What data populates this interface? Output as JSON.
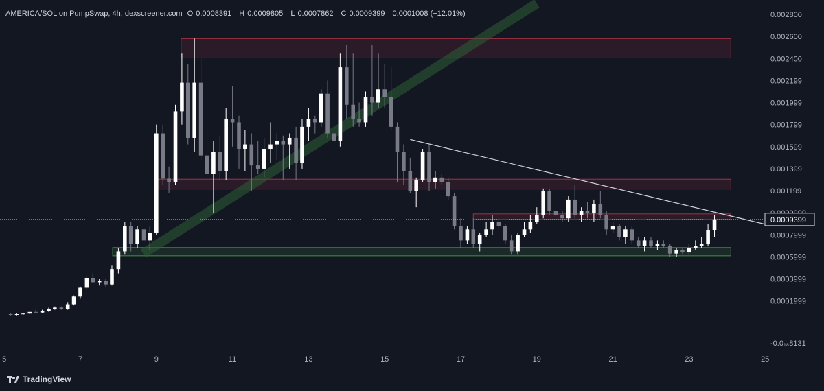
{
  "header": {
    "symbol": "AMERICA/SOL on PumpSwap, 4h, dexscreener.com",
    "open_label": "O",
    "open": "0.0008391",
    "high_label": "H",
    "high": "0.0009805",
    "low_label": "L",
    "low": "0.0007862",
    "close_label": "C",
    "close": "0.0009399",
    "change": "0.0001008 (+12.01%)"
  },
  "watermark": {
    "brand": "TradingView"
  },
  "price_tag": "0.0009399",
  "colors": {
    "background": "#131722",
    "up": "#ffffff",
    "down": "#787b86",
    "zone_red": "#c0394b",
    "zone_green": "#4caf50",
    "trend_green": "#2e5e36",
    "trendline": "#d1d4dc"
  },
  "chart_data": {
    "type": "candlestick",
    "interval": "4h",
    "ylim": [
      -0.00018131,
      0.0028
    ],
    "y_tick_labels": [
      "0.002800",
      "0.002600",
      "0.002400",
      "0.002199",
      "0.001999",
      "0.001799",
      "0.001599",
      "0.001399",
      "0.001199",
      "0.0009999",
      "0.0007999",
      "0.0005999",
      "0.0003999",
      "0.0001999",
      "-0.0₁₈8131"
    ],
    "y_tick_values": [
      0.0028,
      0.0026,
      0.0024,
      0.0022,
      0.002,
      0.0018,
      0.0016,
      0.0014,
      0.0012,
      0.001,
      0.0008,
      0.0006,
      0.0004,
      0.0002,
      -0.00018131
    ],
    "x_tick_labels": [
      "5",
      "7",
      "9",
      "11",
      "13",
      "15",
      "17",
      "19",
      "21",
      "23",
      "25"
    ],
    "x_tick_days": [
      5,
      7,
      9,
      11,
      13,
      15,
      17,
      19,
      21,
      23,
      25
    ],
    "candles": [
      {
        "d": 5.17,
        "o": 8e-05,
        "h": 8.5e-05,
        "l": 7e-05,
        "c": 7.5e-05
      },
      {
        "d": 5.33,
        "o": 7.5e-05,
        "h": 8.5e-05,
        "l": 7e-05,
        "c": 8e-05
      },
      {
        "d": 5.5,
        "o": 8e-05,
        "h": 9e-05,
        "l": 7.5e-05,
        "c": 8.5e-05
      },
      {
        "d": 5.67,
        "o": 8.5e-05,
        "h": 0.0001,
        "l": 8e-05,
        "c": 0.0001
      },
      {
        "d": 5.83,
        "o": 0.0001,
        "h": 0.00012,
        "l": 9e-05,
        "c": 9.5e-05
      },
      {
        "d": 6.0,
        "o": 9.5e-05,
        "h": 0.00012,
        "l": 9e-05,
        "c": 0.00011
      },
      {
        "d": 6.17,
        "o": 0.00011,
        "h": 0.00014,
        "l": 0.0001,
        "c": 0.00013
      },
      {
        "d": 6.33,
        "o": 0.00013,
        "h": 0.00015,
        "l": 0.00012,
        "c": 0.00014
      },
      {
        "d": 6.5,
        "o": 0.00014,
        "h": 0.00015,
        "l": 0.00012,
        "c": 0.00013
      },
      {
        "d": 6.67,
        "o": 0.00013,
        "h": 0.00019,
        "l": 0.00012,
        "c": 0.00017
      },
      {
        "d": 6.83,
        "o": 0.00017,
        "h": 0.00025,
        "l": 0.00016,
        "c": 0.00024
      },
      {
        "d": 7.0,
        "o": 0.00024,
        "h": 0.00033,
        "l": 0.00022,
        "c": 0.00032
      },
      {
        "d": 7.17,
        "o": 0.00032,
        "h": 0.00043,
        "l": 0.0003,
        "c": 0.00041
      },
      {
        "d": 7.33,
        "o": 0.00041,
        "h": 0.00045,
        "l": 0.00036,
        "c": 0.00037
      },
      {
        "d": 7.5,
        "o": 0.00037,
        "h": 0.0004,
        "l": 0.00034,
        "c": 0.00038
      },
      {
        "d": 7.67,
        "o": 0.00038,
        "h": 0.0004,
        "l": 0.00033,
        "c": 0.00035
      },
      {
        "d": 7.83,
        "o": 0.00035,
        "h": 0.00052,
        "l": 0.00034,
        "c": 0.00049
      },
      {
        "d": 8.0,
        "o": 0.00049,
        "h": 0.00068,
        "l": 0.00045,
        "c": 0.00065
      },
      {
        "d": 8.17,
        "o": 0.00065,
        "h": 0.00092,
        "l": 0.00062,
        "c": 0.00088
      },
      {
        "d": 8.33,
        "o": 0.00088,
        "h": 0.00092,
        "l": 0.00065,
        "c": 0.00072
      },
      {
        "d": 8.5,
        "o": 0.00072,
        "h": 0.00088,
        "l": 0.00068,
        "c": 0.00085
      },
      {
        "d": 8.67,
        "o": 0.00085,
        "h": 0.00095,
        "l": 0.0007,
        "c": 0.00075
      },
      {
        "d": 8.83,
        "o": 0.00075,
        "h": 0.00088,
        "l": 0.00066,
        "c": 0.00082
      },
      {
        "d": 9.0,
        "o": 0.00082,
        "h": 0.0018,
        "l": 0.0008,
        "c": 0.00172
      },
      {
        "d": 9.17,
        "o": 0.00172,
        "h": 0.0018,
        "l": 0.00125,
        "c": 0.00131
      },
      {
        "d": 9.33,
        "o": 0.00131,
        "h": 0.00142,
        "l": 0.00118,
        "c": 0.00128
      },
      {
        "d": 9.5,
        "o": 0.00128,
        "h": 0.00198,
        "l": 0.00125,
        "c": 0.00192
      },
      {
        "d": 9.67,
        "o": 0.00192,
        "h": 0.00245,
        "l": 0.0018,
        "c": 0.00218
      },
      {
        "d": 9.83,
        "o": 0.00218,
        "h": 0.00235,
        "l": 0.00162,
        "c": 0.00168
      },
      {
        "d": 10.0,
        "o": 0.00168,
        "h": 0.00258,
        "l": 0.00155,
        "c": 0.00218
      },
      {
        "d": 10.17,
        "o": 0.00218,
        "h": 0.0024,
        "l": 0.00148,
        "c": 0.00152
      },
      {
        "d": 10.33,
        "o": 0.00152,
        "h": 0.00175,
        "l": 0.00128,
        "c": 0.00135
      },
      {
        "d": 10.5,
        "o": 0.00135,
        "h": 0.00165,
        "l": 0.001,
        "c": 0.00155
      },
      {
        "d": 10.67,
        "o": 0.00155,
        "h": 0.0017,
        "l": 0.0013,
        "c": 0.00138
      },
      {
        "d": 10.83,
        "o": 0.00138,
        "h": 0.00195,
        "l": 0.0013,
        "c": 0.00185
      },
      {
        "d": 11.0,
        "o": 0.00185,
        "h": 0.00215,
        "l": 0.0016,
        "c": 0.00182
      },
      {
        "d": 11.17,
        "o": 0.00182,
        "h": 0.00188,
        "l": 0.0014,
        "c": 0.00158
      },
      {
        "d": 11.33,
        "o": 0.00158,
        "h": 0.00175,
        "l": 0.00138,
        "c": 0.00162
      },
      {
        "d": 11.5,
        "o": 0.00162,
        "h": 0.00172,
        "l": 0.0012,
        "c": 0.00143
      },
      {
        "d": 11.67,
        "o": 0.00143,
        "h": 0.00165,
        "l": 0.00135,
        "c": 0.0014
      },
      {
        "d": 11.83,
        "o": 0.0014,
        "h": 0.00168,
        "l": 0.00132,
        "c": 0.00158
      },
      {
        "d": 12.0,
        "o": 0.00158,
        "h": 0.00182,
        "l": 0.00145,
        "c": 0.00162
      },
      {
        "d": 12.17,
        "o": 0.00162,
        "h": 0.00172,
        "l": 0.00148,
        "c": 0.00165
      },
      {
        "d": 12.33,
        "o": 0.00165,
        "h": 0.0017,
        "l": 0.0013,
        "c": 0.00162
      },
      {
        "d": 12.5,
        "o": 0.00162,
        "h": 0.00172,
        "l": 0.0014,
        "c": 0.00168
      },
      {
        "d": 12.67,
        "o": 0.00168,
        "h": 0.00178,
        "l": 0.0013,
        "c": 0.00145
      },
      {
        "d": 12.83,
        "o": 0.00145,
        "h": 0.00185,
        "l": 0.0014,
        "c": 0.00178
      },
      {
        "d": 13.0,
        "o": 0.00178,
        "h": 0.00195,
        "l": 0.00165,
        "c": 0.00185
      },
      {
        "d": 13.17,
        "o": 0.00185,
        "h": 0.00188,
        "l": 0.00172,
        "c": 0.00182
      },
      {
        "d": 13.33,
        "o": 0.00182,
        "h": 0.00212,
        "l": 0.00178,
        "c": 0.00208
      },
      {
        "d": 13.5,
        "o": 0.00208,
        "h": 0.0022,
        "l": 0.00168,
        "c": 0.00172
      },
      {
        "d": 13.67,
        "o": 0.00172,
        "h": 0.0018,
        "l": 0.00148,
        "c": 0.00165
      },
      {
        "d": 13.83,
        "o": 0.00165,
        "h": 0.00245,
        "l": 0.0016,
        "c": 0.00232
      },
      {
        "d": 14.0,
        "o": 0.00232,
        "h": 0.00252,
        "l": 0.00185,
        "c": 0.00198
      },
      {
        "d": 14.17,
        "o": 0.00198,
        "h": 0.00245,
        "l": 0.00178,
        "c": 0.00185
      },
      {
        "d": 14.33,
        "o": 0.00185,
        "h": 0.002,
        "l": 0.00178,
        "c": 0.00182
      },
      {
        "d": 14.5,
        "o": 0.00182,
        "h": 0.0021,
        "l": 0.00178,
        "c": 0.00205
      },
      {
        "d": 14.67,
        "o": 0.00205,
        "h": 0.00252,
        "l": 0.00188,
        "c": 0.002
      },
      {
        "d": 14.83,
        "o": 0.002,
        "h": 0.00245,
        "l": 0.00195,
        "c": 0.00212
      },
      {
        "d": 15.0,
        "o": 0.00212,
        "h": 0.00235,
        "l": 0.00195,
        "c": 0.00205
      },
      {
        "d": 15.17,
        "o": 0.00205,
        "h": 0.00232,
        "l": 0.00175,
        "c": 0.00178
      },
      {
        "d": 15.33,
        "o": 0.00178,
        "h": 0.00182,
        "l": 0.00128,
        "c": 0.00155
      },
      {
        "d": 15.5,
        "o": 0.00155,
        "h": 0.00162,
        "l": 0.00125,
        "c": 0.00138
      },
      {
        "d": 15.67,
        "o": 0.00138,
        "h": 0.0015,
        "l": 0.00118,
        "c": 0.0012
      },
      {
        "d": 15.83,
        "o": 0.0012,
        "h": 0.00132,
        "l": 0.00105,
        "c": 0.0013
      },
      {
        "d": 16.0,
        "o": 0.0013,
        "h": 0.00158,
        "l": 0.00128,
        "c": 0.00155
      },
      {
        "d": 16.17,
        "o": 0.00155,
        "h": 0.00162,
        "l": 0.0012,
        "c": 0.00128
      },
      {
        "d": 16.33,
        "o": 0.00128,
        "h": 0.00138,
        "l": 0.00122,
        "c": 0.00132
      },
      {
        "d": 16.5,
        "o": 0.00132,
        "h": 0.00135,
        "l": 0.00125,
        "c": 0.00128
      },
      {
        "d": 16.67,
        "o": 0.00128,
        "h": 0.00132,
        "l": 0.00112,
        "c": 0.00115
      },
      {
        "d": 16.83,
        "o": 0.00115,
        "h": 0.00118,
        "l": 0.00085,
        "c": 0.00088
      },
      {
        "d": 17.0,
        "o": 0.00088,
        "h": 0.00095,
        "l": 0.00068,
        "c": 0.00075
      },
      {
        "d": 17.17,
        "o": 0.00075,
        "h": 0.00088,
        "l": 0.00072,
        "c": 0.00085
      },
      {
        "d": 17.33,
        "o": 0.00085,
        "h": 0.00095,
        "l": 0.00068,
        "c": 0.00072
      },
      {
        "d": 17.5,
        "o": 0.00072,
        "h": 0.00082,
        "l": 0.00065,
        "c": 0.0008
      },
      {
        "d": 17.67,
        "o": 0.0008,
        "h": 0.00092,
        "l": 0.00078,
        "c": 0.00085
      },
      {
        "d": 17.83,
        "o": 0.00085,
        "h": 0.00098,
        "l": 0.0008,
        "c": 0.00092
      },
      {
        "d": 18.0,
        "o": 0.00092,
        "h": 0.00095,
        "l": 0.00085,
        "c": 0.00088
      },
      {
        "d": 18.17,
        "o": 0.00088,
        "h": 0.0009,
        "l": 0.00072,
        "c": 0.00075
      },
      {
        "d": 18.33,
        "o": 0.00075,
        "h": 0.0008,
        "l": 0.00062,
        "c": 0.00065
      },
      {
        "d": 18.5,
        "o": 0.00065,
        "h": 0.00082,
        "l": 0.00062,
        "c": 0.0008
      },
      {
        "d": 18.67,
        "o": 0.0008,
        "h": 0.00092,
        "l": 0.00078,
        "c": 0.00085
      },
      {
        "d": 18.83,
        "o": 0.00085,
        "h": 0.00098,
        "l": 0.00082,
        "c": 0.00092
      },
      {
        "d": 19.0,
        "o": 0.00092,
        "h": 0.00105,
        "l": 0.0009,
        "c": 0.00098
      },
      {
        "d": 19.17,
        "o": 0.00098,
        "h": 0.00122,
        "l": 0.00095,
        "c": 0.0012
      },
      {
        "d": 19.33,
        "o": 0.0012,
        "h": 0.00122,
        "l": 0.00098,
        "c": 0.00102
      },
      {
        "d": 19.5,
        "o": 0.00102,
        "h": 0.00108,
        "l": 0.00095,
        "c": 0.00098
      },
      {
        "d": 19.67,
        "o": 0.00098,
        "h": 0.00102,
        "l": 0.00092,
        "c": 0.00095
      },
      {
        "d": 19.83,
        "o": 0.00095,
        "h": 0.00115,
        "l": 0.00092,
        "c": 0.00112
      },
      {
        "d": 20.0,
        "o": 0.00112,
        "h": 0.00125,
        "l": 0.00095,
        "c": 0.00098
      },
      {
        "d": 20.17,
        "o": 0.00098,
        "h": 0.00105,
        "l": 0.00092,
        "c": 0.00102
      },
      {
        "d": 20.33,
        "o": 0.00102,
        "h": 0.0011,
        "l": 0.00095,
        "c": 0.001
      },
      {
        "d": 20.5,
        "o": 0.001,
        "h": 0.00112,
        "l": 0.00092,
        "c": 0.00108
      },
      {
        "d": 20.67,
        "o": 0.00108,
        "h": 0.0012,
        "l": 0.00095,
        "c": 0.00098
      },
      {
        "d": 20.83,
        "o": 0.00098,
        "h": 0.00102,
        "l": 0.0008,
        "c": 0.00085
      },
      {
        "d": 21.0,
        "o": 0.00085,
        "h": 0.00092,
        "l": 0.00082,
        "c": 0.00088
      },
      {
        "d": 21.17,
        "o": 0.00088,
        "h": 0.0009,
        "l": 0.00075,
        "c": 0.00078
      },
      {
        "d": 21.33,
        "o": 0.00078,
        "h": 0.00088,
        "l": 0.00072,
        "c": 0.00085
      },
      {
        "d": 21.5,
        "o": 0.00085,
        "h": 0.00088,
        "l": 0.00072,
        "c": 0.00075
      },
      {
        "d": 21.67,
        "o": 0.00075,
        "h": 0.00078,
        "l": 0.00068,
        "c": 0.0007
      },
      {
        "d": 21.83,
        "o": 0.0007,
        "h": 0.00078,
        "l": 0.00065,
        "c": 0.00075
      },
      {
        "d": 22.0,
        "o": 0.00075,
        "h": 0.00078,
        "l": 0.00068,
        "c": 0.0007
      },
      {
        "d": 22.17,
        "o": 0.0007,
        "h": 0.00075,
        "l": 0.00066,
        "c": 0.00072
      },
      {
        "d": 22.33,
        "o": 0.00072,
        "h": 0.00075,
        "l": 0.00068,
        "c": 0.0007
      },
      {
        "d": 22.5,
        "o": 0.0007,
        "h": 0.00072,
        "l": 0.0006,
        "c": 0.00063
      },
      {
        "d": 22.67,
        "o": 0.00063,
        "h": 0.00068,
        "l": 0.0006,
        "c": 0.00066
      },
      {
        "d": 22.83,
        "o": 0.00066,
        "h": 0.00068,
        "l": 0.00062,
        "c": 0.00064
      },
      {
        "d": 23.0,
        "o": 0.00064,
        "h": 0.00072,
        "l": 0.00062,
        "c": 0.00068
      },
      {
        "d": 23.17,
        "o": 0.00068,
        "h": 0.00075,
        "l": 0.00066,
        "c": 0.0007
      },
      {
        "d": 23.33,
        "o": 0.0007,
        "h": 0.00078,
        "l": 0.00068,
        "c": 0.00072
      },
      {
        "d": 23.5,
        "o": 0.00072,
        "h": 0.0009,
        "l": 0.0007,
        "c": 0.00084
      },
      {
        "d": 23.67,
        "o": 0.00084,
        "h": 0.00098,
        "l": 0.00078,
        "c": 0.00094
      }
    ],
    "zones": [
      {
        "name": "supply-zone-top",
        "from_day": 9.65,
        "to_day": 24.1,
        "y_low": 0.002405,
        "y_high": 0.00258,
        "kind": "red"
      },
      {
        "name": "resistance-zone",
        "from_day": 9.0,
        "to_day": 24.1,
        "y_low": 0.001215,
        "y_high": 0.001305,
        "kind": "red"
      },
      {
        "name": "resistance-zone-low",
        "from_day": 17.33,
        "to_day": 24.1,
        "y_low": 0.00094,
        "y_high": 0.00099,
        "kind": "red"
      },
      {
        "name": "support-zone",
        "from_day": 7.85,
        "to_day": 24.1,
        "y_low": 0.00061,
        "y_high": 0.000685,
        "kind": "green"
      }
    ],
    "trendlines": [
      {
        "name": "rising-trend-channel",
        "from": [
          8.65,
          0.00063
        ],
        "to": [
          19.0,
          0.0029
        ],
        "kind": "green-band"
      },
      {
        "name": "descending-trendline",
        "from": [
          15.67,
          0.001665
        ],
        "to": [
          25.2,
          0.00088
        ],
        "kind": "white"
      }
    ],
    "last_price": 0.0009399
  }
}
